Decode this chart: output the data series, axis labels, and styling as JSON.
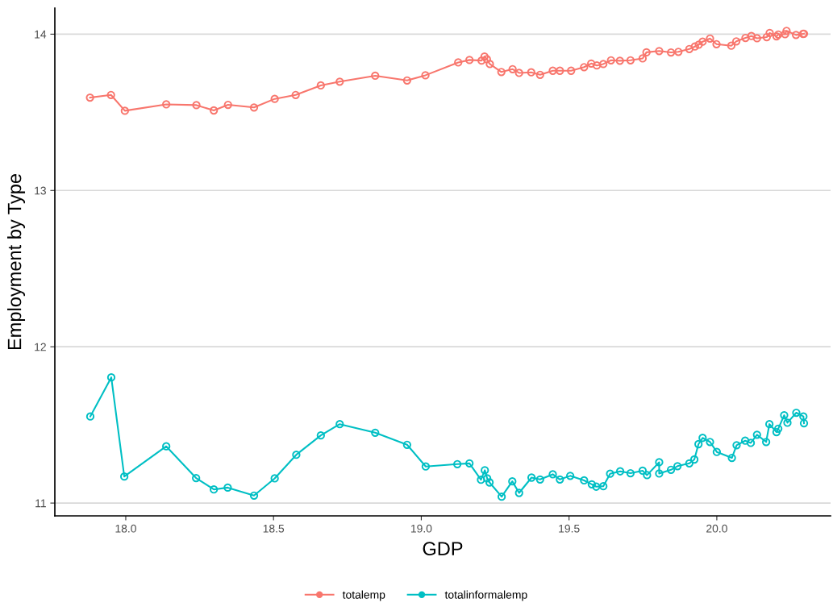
{
  "chart_data": {
    "type": "line",
    "xlabel": "GDP",
    "ylabel": "Employment by Type",
    "series": [
      {
        "name": "totalemp",
        "color": "#f8766d",
        "x": [
          17.879,
          17.95,
          17.997,
          18.137,
          18.239,
          18.298,
          18.346,
          18.434,
          18.504,
          18.575,
          18.66,
          18.724,
          18.844,
          18.952,
          19.014,
          19.125,
          19.163,
          19.204,
          19.214,
          19.222,
          19.232,
          19.271,
          19.309,
          19.331,
          19.372,
          19.402,
          19.445,
          19.469,
          19.507,
          19.551,
          19.575,
          19.594,
          19.616,
          19.642,
          19.672,
          19.708,
          19.749,
          19.762,
          19.805,
          19.845,
          19.87,
          19.907,
          19.926,
          19.939,
          19.952,
          19.977,
          19.999,
          20.049,
          20.066,
          20.097,
          20.117,
          20.136,
          20.169,
          20.179,
          20.202,
          20.208,
          20.231,
          20.236,
          20.268,
          20.292,
          20.295
        ],
        "values": [
          13.594,
          13.611,
          13.51,
          13.551,
          13.546,
          13.512,
          13.548,
          13.531,
          13.586,
          13.611,
          13.672,
          13.696,
          13.734,
          13.704,
          13.737,
          13.819,
          13.835,
          13.831,
          13.857,
          13.84,
          13.809,
          13.758,
          13.776,
          13.752,
          13.756,
          13.74,
          13.766,
          13.766,
          13.766,
          13.789,
          13.812,
          13.8,
          13.809,
          13.833,
          13.83,
          13.833,
          13.845,
          13.884,
          13.892,
          13.883,
          13.887,
          13.905,
          13.921,
          13.933,
          13.952,
          13.972,
          13.936,
          13.926,
          13.954,
          13.976,
          13.988,
          13.974,
          13.981,
          14.008,
          13.986,
          13.998,
          14.0,
          14.021,
          13.995,
          14.002,
          14.003
        ]
      },
      {
        "name": "totalinformalemp",
        "color": "#00bfc4",
        "x": [
          17.88,
          17.951,
          17.995,
          18.137,
          18.238,
          18.298,
          18.345,
          18.434,
          18.504,
          18.577,
          18.66,
          18.724,
          18.844,
          18.952,
          19.015,
          19.122,
          19.163,
          19.202,
          19.215,
          19.223,
          19.231,
          19.272,
          19.308,
          19.331,
          19.373,
          19.402,
          19.445,
          19.469,
          19.504,
          19.551,
          19.577,
          19.592,
          19.616,
          19.639,
          19.673,
          19.708,
          19.749,
          19.764,
          19.805,
          19.805,
          19.845,
          19.867,
          19.907,
          19.924,
          19.938,
          19.952,
          19.977,
          20.0,
          20.051,
          20.067,
          20.096,
          20.115,
          20.136,
          20.167,
          20.178,
          20.202,
          20.208,
          20.228,
          20.239,
          20.269,
          20.293,
          20.295
        ],
        "values": [
          11.554,
          11.804,
          11.17,
          11.363,
          11.16,
          11.087,
          11.099,
          11.048,
          11.158,
          11.309,
          11.433,
          11.505,
          11.45,
          11.373,
          11.234,
          11.249,
          11.254,
          11.149,
          11.21,
          11.158,
          11.132,
          11.041,
          11.139,
          11.065,
          11.163,
          11.151,
          11.184,
          11.151,
          11.174,
          11.145,
          11.12,
          11.105,
          11.108,
          11.188,
          11.203,
          11.191,
          11.207,
          11.179,
          11.261,
          11.189,
          11.213,
          11.236,
          11.254,
          11.279,
          11.377,
          11.417,
          11.391,
          11.327,
          11.289,
          11.37,
          11.399,
          11.385,
          11.437,
          11.391,
          11.505,
          11.454,
          11.476,
          11.562,
          11.514,
          11.578,
          11.554,
          11.511
        ]
      }
    ],
    "xlim": [
      17.76,
      20.385
    ],
    "xticks": [
      {
        "value": 18,
        "label": "18.0"
      },
      {
        "value": 18.5,
        "label": "18.5"
      },
      {
        "value": 19,
        "label": "19.0"
      },
      {
        "value": 19.5,
        "label": "19.5"
      },
      {
        "value": 20,
        "label": "20.0"
      }
    ],
    "ylim": [
      10.918,
      14.167
    ],
    "yticks": [
      11,
      12,
      13,
      14
    ],
    "grid": "y",
    "legend": "bottom",
    "marker": "circle",
    "line_style": "solid"
  }
}
